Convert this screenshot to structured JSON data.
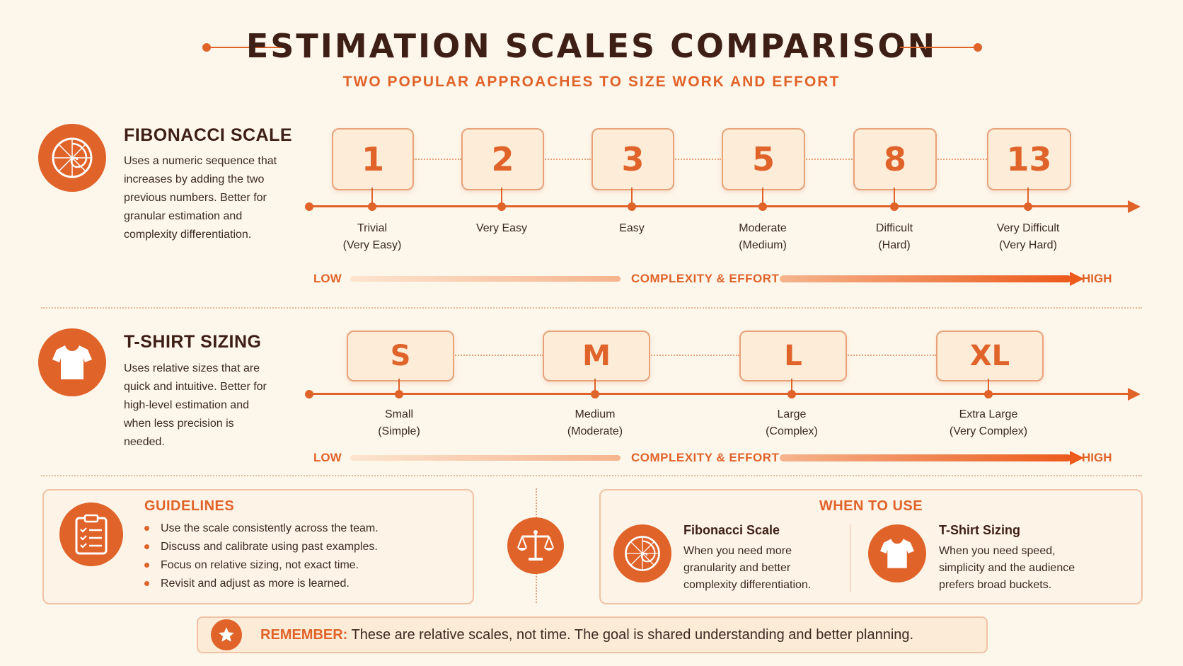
{
  "header": {
    "title": "ESTIMATION SCALES COMPARISON",
    "subtitle": "TWO POPULAR APPROACHES TO SIZE WORK AND EFFORT"
  },
  "fibonacci": {
    "title": "FIBONACCI SCALE",
    "description": "Uses a numeric sequence that increases by adding the two previous numbers. Better for granular estimation and complexity differentiation.",
    "icon": "fibonacci-spiral-icon",
    "items": [
      {
        "value": "1",
        "label1": "Trivial",
        "label2": "(Very Easy)"
      },
      {
        "value": "2",
        "label1": "Very Easy",
        "label2": ""
      },
      {
        "value": "3",
        "label1": "Easy",
        "label2": ""
      },
      {
        "value": "5",
        "label1": "Moderate",
        "label2": "(Medium)"
      },
      {
        "value": "8",
        "label1": "Difficult",
        "label2": "(Hard)"
      },
      {
        "value": "13",
        "label1": "Very Difficult",
        "label2": "(Very Hard)"
      }
    ],
    "low": "LOW",
    "high": "HIGH",
    "axis_label": "COMPLEXITY & EFFORT"
  },
  "tshirt": {
    "title": "T-SHIRT SIZING",
    "description": "Uses relative sizes that are quick and intuitive. Better for high-level estimation and when less precision is needed.",
    "icon": "tshirt-icon",
    "items": [
      {
        "value": "S",
        "label1": "Small",
        "label2": "(Simple)"
      },
      {
        "value": "M",
        "label1": "Medium",
        "label2": "(Moderate)"
      },
      {
        "value": "L",
        "label1": "Large",
        "label2": "(Complex)"
      },
      {
        "value": "XL",
        "label1": "Extra Large",
        "label2": "(Very Complex)"
      }
    ],
    "low": "LOW",
    "high": "HIGH",
    "axis_label": "COMPLEXITY & EFFORT"
  },
  "guidelines": {
    "title": "GUIDELINES",
    "icon": "clipboard-checklist-icon",
    "items": [
      "Use the scale consistently across the team.",
      "Discuss and calibrate using past examples.",
      "Focus on relative sizing, not exact time.",
      "Revisit and adjust as more is learned."
    ]
  },
  "center_icon": "balance-scale-icon",
  "when_to_use": {
    "title": "WHEN TO USE",
    "fibonacci": {
      "title": "Fibonacci Scale",
      "description": "When you need more granularity and better complexity differentiation."
    },
    "tshirt": {
      "title": "T-Shirt Sizing",
      "description": "When you need speed, simplicity and the audience prefers broad buckets."
    }
  },
  "remember": {
    "key": "REMEMBER:",
    "text": " These are relative scales, not time. The goal is shared understanding and better planning.",
    "icon": "star-icon"
  },
  "colors": {
    "accent": "#e0632a",
    "background": "#fdf6ea",
    "dark_text": "#3d1f16"
  }
}
